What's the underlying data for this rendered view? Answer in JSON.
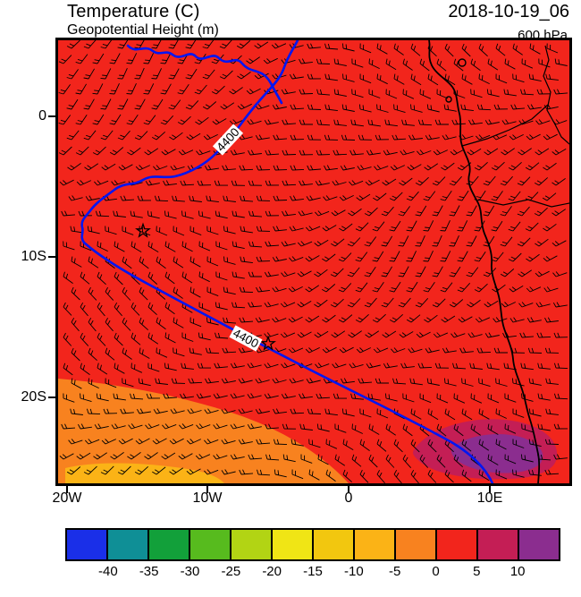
{
  "header": {
    "title": "Temperature (C)",
    "subtitle": "Geopotential Height (m)",
    "datetime": "2018-10-19_06",
    "level": "600 hPa"
  },
  "axes": {
    "y_labels": [
      "0",
      "10S",
      "20S"
    ],
    "x_labels": [
      "20W",
      "10W",
      "0",
      "10E"
    ]
  },
  "contours": {
    "label": "4400",
    "field": "Geopotential Height (m)",
    "level_m": 4400
  },
  "map": {
    "colors": {
      "field_main": "#f2251c",
      "field_orange": "#f8821f",
      "field_yellow_band": "#fbb316",
      "field_crimson": "#c41e55",
      "field_purple": "#8b2d8f",
      "contour": "#0016f2",
      "coast": "#000000"
    }
  },
  "colorbar": {
    "units": "C",
    "colors": [
      "#1a2fe8",
      "#0f8f96",
      "#12a03a",
      "#57bb1e",
      "#b2d414",
      "#f0e515",
      "#f2c70f",
      "#fbb316",
      "#f8821f",
      "#f2251c",
      "#c41e55",
      "#8b2d8f"
    ],
    "tick_labels": [
      "-40",
      "-35",
      "-30",
      "-25",
      "-20",
      "-15",
      "-10",
      "-5",
      "0",
      "5",
      "10"
    ]
  },
  "chart_data": {
    "type": "heatmap",
    "title": "Temperature (C)",
    "overlay": "Geopotential Height (m)",
    "datetime": "2018-10-19_06",
    "pressure_level": "600 hPa",
    "x_axis": {
      "tick_labels": [
        "20W",
        "10W",
        "0",
        "10E"
      ],
      "lon_range_deg": [
        -20.6,
        15.7
      ]
    },
    "y_axis": {
      "tick_labels": [
        "0",
        "10S",
        "20S"
      ],
      "lat_range_deg": [
        -26.2,
        5.4
      ]
    },
    "color_scale": {
      "units": "C",
      "boundaries": [
        -40,
        -35,
        -30,
        -25,
        -20,
        -15,
        -10,
        -5,
        0,
        5,
        10
      ],
      "colors": [
        "#1a2fe8",
        "#0f8f96",
        "#12a03a",
        "#57bb1e",
        "#b2d414",
        "#f0e515",
        "#f2c70f",
        "#fbb316",
        "#f8821f",
        "#f2251c",
        "#c41e55",
        "#8b2d8f"
      ]
    },
    "contour_levels_m": [
      4400
    ],
    "wind_barbs_overlay": true,
    "regions": [
      {
        "value_range_c": [
          0,
          5
        ],
        "color": "#f2251c",
        "description": "dominant temperature band covering most of the map"
      },
      {
        "value_range_c": [
          -5,
          0
        ],
        "color": "#f8821f",
        "description": "cooler region in the southwest corner"
      },
      {
        "value_range_c": [
          -10,
          -5
        ],
        "color": "#fbb316",
        "description": "thin cooler band along the bottom southwest edge"
      },
      {
        "value_range_c": [
          5,
          10
        ],
        "color": "#c41e55",
        "description": "warm fringe around the southeast pocket"
      },
      {
        "value_range_c": [
          10,
          15
        ],
        "color": "#8b2d8f",
        "description": "warm core in the southeast near the coast (~22S, 8E)"
      }
    ],
    "markers": [
      {
        "type": "star",
        "lon": -14.6,
        "lat": -8.2
      },
      {
        "type": "star",
        "lon": -5.7,
        "lat": -16.2
      }
    ]
  }
}
